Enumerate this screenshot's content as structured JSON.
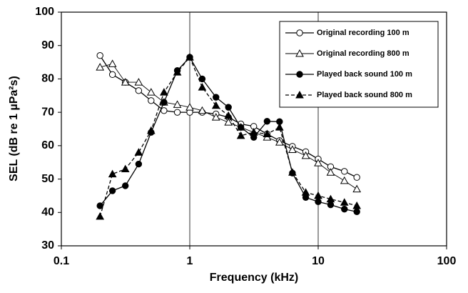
{
  "chart_data": {
    "type": "line",
    "x_label": "Frequency (kHz)",
    "y_label": "SEL (dB re 1 µPa²s)",
    "x_log": true,
    "grid": "x",
    "legend_position": "upper right",
    "xlim": [
      0.1,
      100
    ],
    "xticks": [
      0.1,
      1,
      10,
      100
    ],
    "ylim": [
      30,
      100
    ],
    "yticks": [
      30,
      40,
      50,
      60,
      70,
      80,
      90,
      100
    ],
    "x": [
      0.2,
      0.25,
      0.315,
      0.4,
      0.5,
      0.63,
      0.8,
      1,
      1.25,
      1.6,
      2,
      2.5,
      3.15,
      4,
      5,
      6.3,
      8,
      10,
      12.5,
      16,
      20
    ],
    "series": [
      {
        "name": "Original recording 100 m",
        "color": "#000000",
        "marker": "circle",
        "marker_filled": false,
        "line_style": "solid",
        "values": [
          87,
          81.3,
          79,
          76.5,
          73.5,
          70.5,
          70,
          70,
          70,
          69.5,
          68.5,
          66.5,
          65.8,
          63.5,
          61.5,
          59.8,
          58.2,
          56,
          53.7,
          52.3,
          50.5
        ]
      },
      {
        "name": "Original recording 800 m",
        "color": "#000000",
        "marker": "triangle",
        "marker_filled": false,
        "line_style": "thin",
        "values": [
          83.5,
          84.5,
          79,
          79,
          76,
          73,
          72.3,
          71.5,
          70.5,
          68.5,
          67,
          65.5,
          64,
          62.5,
          61,
          58.8,
          57,
          54.8,
          52,
          49.5,
          47
        ]
      },
      {
        "name": "Played back sound 100 m",
        "color": "#000000",
        "marker": "circle",
        "marker_filled": true,
        "line_style": "solid",
        "values": [
          42,
          46.5,
          48,
          54.5,
          64,
          73,
          82.5,
          86.5,
          80,
          74.5,
          71.5,
          65.5,
          62.5,
          67.3,
          67.2,
          51.8,
          44.5,
          43.2,
          42.3,
          41,
          40.2
        ]
      },
      {
        "name": "Played back sound 800 m",
        "color": "#000000",
        "marker": "triangle",
        "marker_filled": true,
        "line_style": "dashed",
        "values": [
          38.8,
          51.5,
          53,
          58,
          64.5,
          76,
          82,
          86.5,
          77.5,
          72,
          69,
          63,
          64,
          63.5,
          65.5,
          52,
          46,
          45,
          44,
          43,
          42
        ]
      }
    ]
  }
}
